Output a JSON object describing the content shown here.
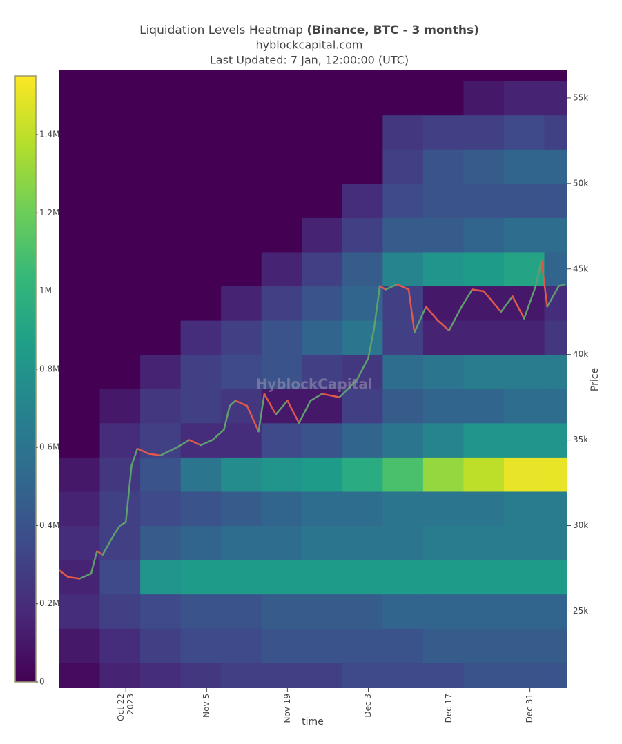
{
  "chart_data": {
    "type": "heatmap",
    "title": "Liquidation Levels Heatmap ",
    "title_bold": "(Binance, BTC - 3 months)",
    "subtitle": "hyblockcapital.com",
    "updated": "Last Updated: 7 Jan, 12:00:00 (UTC)",
    "watermark": "HyblockCapital",
    "x_label": "time",
    "y_label": "Price",
    "colorscale": "Viridis",
    "xlim": [
      "2023-10-10T12:00:00Z",
      "2024-01-06T12:00:00Z"
    ],
    "xticks": [
      {
        "value": "2023-10-22",
        "label": "Oct 22\n2023"
      },
      {
        "value": "2023-11-05",
        "label": "Nov 5"
      },
      {
        "value": "2023-11-19",
        "label": "Nov 19"
      },
      {
        "value": "2023-12-03",
        "label": "Dec 3"
      },
      {
        "value": "2023-12-17",
        "label": "Dec 17"
      },
      {
        "value": "2023-12-31",
        "label": "Dec 31"
      }
    ],
    "ylim": [
      20500,
      56650
    ],
    "yticks": [
      {
        "value": 25000,
        "label": "25k"
      },
      {
        "value": 30000,
        "label": "30k"
      },
      {
        "value": 35000,
        "label": "35k"
      },
      {
        "value": 40000,
        "label": "40k"
      },
      {
        "value": 45000,
        "label": "45k"
      },
      {
        "value": 50000,
        "label": "50k"
      },
      {
        "value": 55000,
        "label": "55k"
      }
    ],
    "zlim": [
      0,
      1550000
    ],
    "zticks": [
      0,
      {
        "value": 200000,
        "label": "0.2M"
      },
      {
        "value": 400000,
        "label": "0.4M"
      },
      {
        "value": 600000,
        "label": "0.6M"
      },
      {
        "value": 800000,
        "label": "0.8M"
      },
      {
        "value": 1000000,
        "label": "1M"
      },
      {
        "value": 1200000,
        "label": "1.2M"
      },
      {
        "value": 1400000,
        "label": "1.4M"
      }
    ],
    "x": [
      "2023-10-14",
      "2023-10-21",
      "2023-10-28",
      "2023-11-04",
      "2023-11-11",
      "2023-11-18",
      "2023-11-25",
      "2023-12-02",
      "2023-12-09",
      "2023-12-16",
      "2023-12-23",
      "2023-12-30",
      "2024-01-06"
    ],
    "y": [
      21000,
      23000,
      25000,
      27000,
      29000,
      31000,
      33000,
      35000,
      37000,
      39000,
      41000,
      43000,
      45000,
      47000,
      49000,
      51000,
      53000,
      55000
    ],
    "z": [
      [
        50000,
        150000,
        200000,
        250000,
        300000,
        300000,
        300000,
        350000,
        350000,
        350000,
        400000,
        400000,
        400000
      ],
      [
        100000,
        200000,
        300000,
        350000,
        350000,
        400000,
        400000,
        400000,
        400000,
        450000,
        450000,
        450000,
        450000
      ],
      [
        200000,
        300000,
        350000,
        400000,
        400000,
        450000,
        450000,
        450000,
        500000,
        500000,
        500000,
        500000,
        500000
      ],
      [
        150000,
        350000,
        800000,
        850000,
        850000,
        850000,
        850000,
        850000,
        850000,
        850000,
        850000,
        850000,
        850000
      ],
      [
        200000,
        300000,
        450000,
        500000,
        550000,
        550000,
        600000,
        600000,
        600000,
        650000,
        650000,
        650000,
        650000
      ],
      [
        150000,
        300000,
        350000,
        400000,
        450000,
        500000,
        550000,
        550000,
        600000,
        600000,
        600000,
        650000,
        650000
      ],
      [
        100000,
        250000,
        400000,
        600000,
        750000,
        800000,
        850000,
        950000,
        1100000,
        1300000,
        1400000,
        1500000,
        1500000
      ],
      [
        0,
        200000,
        300000,
        200000,
        200000,
        350000,
        400000,
        500000,
        600000,
        700000,
        800000,
        800000,
        800000
      ],
      [
        0,
        100000,
        250000,
        300000,
        250000,
        100000,
        100000,
        300000,
        450000,
        500000,
        500000,
        550000,
        550000
      ],
      [
        0,
        0,
        150000,
        300000,
        350000,
        400000,
        300000,
        250000,
        550000,
        600000,
        650000,
        650000,
        650000
      ],
      [
        0,
        0,
        0,
        200000,
        300000,
        400000,
        500000,
        600000,
        300000,
        150000,
        150000,
        150000,
        250000
      ],
      [
        0,
        0,
        0,
        0,
        150000,
        300000,
        400000,
        500000,
        300000,
        100000,
        100000,
        100000,
        200000
      ],
      [
        0,
        0,
        0,
        0,
        0,
        150000,
        300000,
        450000,
        700000,
        800000,
        850000,
        900000,
        500000
      ],
      [
        0,
        0,
        0,
        0,
        0,
        0,
        150000,
        300000,
        450000,
        450000,
        500000,
        550000,
        550000
      ],
      [
        0,
        0,
        0,
        0,
        0,
        0,
        0,
        200000,
        350000,
        400000,
        400000,
        400000,
        400000
      ],
      [
        0,
        0,
        0,
        0,
        0,
        0,
        0,
        0,
        300000,
        400000,
        450000,
        500000,
        500000
      ],
      [
        0,
        0,
        0,
        0,
        0,
        0,
        0,
        0,
        250000,
        300000,
        300000,
        350000,
        300000
      ],
      [
        0,
        0,
        0,
        0,
        0,
        0,
        0,
        0,
        0,
        0,
        100000,
        150000,
        150000
      ]
    ],
    "price": {
      "up_color": "#5f9e6e",
      "down_color": "#e0584a",
      "x": [
        "2023-10-10",
        "2023-10-12",
        "2023-10-14",
        "2023-10-16",
        "2023-10-17",
        "2023-10-18",
        "2023-10-20",
        "2023-10-21",
        "2023-10-22",
        "2023-10-23",
        "2023-10-24",
        "2023-10-26",
        "2023-10-28",
        "2023-10-31",
        "2023-11-02",
        "2023-11-04",
        "2023-11-06",
        "2023-11-08",
        "2023-11-09",
        "2023-11-10",
        "2023-11-12",
        "2023-11-14",
        "2023-11-15",
        "2023-11-17",
        "2023-11-19",
        "2023-11-21",
        "2023-11-23",
        "2023-11-25",
        "2023-11-28",
        "2023-12-01",
        "2023-12-03",
        "2023-12-04",
        "2023-12-05",
        "2023-12-06",
        "2023-12-08",
        "2023-12-10",
        "2023-12-11",
        "2023-12-13",
        "2023-12-15",
        "2023-12-17",
        "2023-12-19",
        "2023-12-21",
        "2023-12-23",
        "2023-12-26",
        "2023-12-28",
        "2023-12-30",
        "2024-01-01",
        "2024-01-02",
        "2024-01-03",
        "2024-01-05",
        "2024-01-06"
      ],
      "values": [
        27500,
        27000,
        26900,
        27200,
        28500,
        28300,
        29500,
        30000,
        30200,
        33500,
        34500,
        34200,
        34100,
        34600,
        35000,
        34700,
        35000,
        35600,
        37000,
        37300,
        37000,
        35500,
        37700,
        36500,
        37300,
        36000,
        37300,
        37700,
        37500,
        38500,
        39800,
        41500,
        44000,
        43800,
        44100,
        43800,
        41300,
        42800,
        42000,
        41400,
        42700,
        43800,
        43700,
        42500,
        43400,
        42100,
        44000,
        45500,
        42800,
        44000,
        44100
      ]
    }
  }
}
